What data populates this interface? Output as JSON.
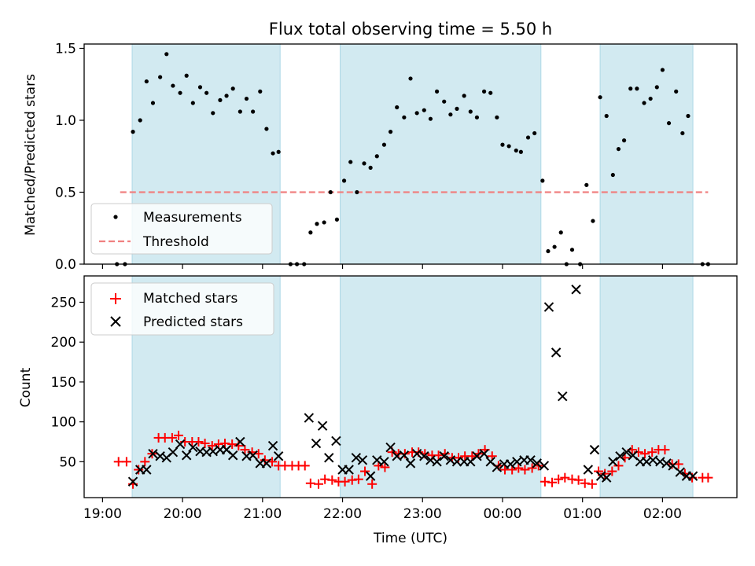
{
  "title": "Flux total observing time = 5.50 h",
  "x_axis": {
    "label": "Time (UTC)",
    "range_hours": [
      18.77,
      26.93
    ],
    "ticks": [
      {
        "h": 19,
        "label": "19:00"
      },
      {
        "h": 20,
        "label": "20:00"
      },
      {
        "h": 21,
        "label": "21:00"
      },
      {
        "h": 22,
        "label": "22:00"
      },
      {
        "h": 23,
        "label": "23:00"
      },
      {
        "h": 24,
        "label": "00:00"
      },
      {
        "h": 25,
        "label": "01:00"
      },
      {
        "h": 26,
        "label": "02:00"
      }
    ]
  },
  "colors": {
    "shade": "#add8e6",
    "measurement": "#000000",
    "threshold": "#f08080",
    "matched": "#ff0000",
    "predicted": "#000000"
  },
  "chart_data": [
    {
      "type": "scatter",
      "panel": "top",
      "ylabel": "Matched/Predicted stars",
      "ylim": [
        0,
        1.53
      ],
      "yticks": [
        {
          "v": 0.0,
          "label": "0.0"
        },
        {
          "v": 0.5,
          "label": "0.5"
        },
        {
          "v": 1.0,
          "label": "1.0"
        },
        {
          "v": 1.5,
          "label": "1.5"
        }
      ],
      "shaded_intervals": [
        [
          19.37,
          21.22
        ],
        [
          21.97,
          24.48
        ],
        [
          25.22,
          26.38
        ]
      ],
      "legend": {
        "position": "lower-left",
        "entries": [
          "Measurements",
          "Threshold"
        ]
      },
      "threshold": {
        "name": "Threshold",
        "value": 0.5,
        "x_range": [
          19.22,
          26.57
        ]
      },
      "measurements": {
        "name": "Measurements",
        "points": [
          [
            19.18,
            0.0
          ],
          [
            19.28,
            0.0
          ],
          [
            19.38,
            0.92
          ],
          [
            19.47,
            1.0
          ],
          [
            19.55,
            1.27
          ],
          [
            19.63,
            1.12
          ],
          [
            19.72,
            1.3
          ],
          [
            19.8,
            1.46
          ],
          [
            19.88,
            1.24
          ],
          [
            19.97,
            1.19
          ],
          [
            20.05,
            1.31
          ],
          [
            20.13,
            1.12
          ],
          [
            20.22,
            1.23
          ],
          [
            20.3,
            1.19
          ],
          [
            20.38,
            1.05
          ],
          [
            20.47,
            1.14
          ],
          [
            20.55,
            1.17
          ],
          [
            20.63,
            1.22
          ],
          [
            20.72,
            1.06
          ],
          [
            20.8,
            1.15
          ],
          [
            20.88,
            1.06
          ],
          [
            20.97,
            1.2
          ],
          [
            21.05,
            0.94
          ],
          [
            21.13,
            0.77
          ],
          [
            21.2,
            0.78
          ],
          [
            21.35,
            0.0
          ],
          [
            21.43,
            0.0
          ],
          [
            21.52,
            0.0
          ],
          [
            21.6,
            0.22
          ],
          [
            21.68,
            0.28
          ],
          [
            21.77,
            0.29
          ],
          [
            21.85,
            0.5
          ],
          [
            21.93,
            0.31
          ],
          [
            22.02,
            0.58
          ],
          [
            22.1,
            0.71
          ],
          [
            22.18,
            0.5
          ],
          [
            22.27,
            0.7
          ],
          [
            22.35,
            0.67
          ],
          [
            22.43,
            0.75
          ],
          [
            22.52,
            0.83
          ],
          [
            22.6,
            0.92
          ],
          [
            22.68,
            1.09
          ],
          [
            22.77,
            1.02
          ],
          [
            22.85,
            1.29
          ],
          [
            22.93,
            1.05
          ],
          [
            23.02,
            1.07
          ],
          [
            23.1,
            1.01
          ],
          [
            23.18,
            1.2
          ],
          [
            23.27,
            1.13
          ],
          [
            23.35,
            1.04
          ],
          [
            23.43,
            1.08
          ],
          [
            23.52,
            1.17
          ],
          [
            23.6,
            1.06
          ],
          [
            23.68,
            1.02
          ],
          [
            23.77,
            1.2
          ],
          [
            23.85,
            1.19
          ],
          [
            23.93,
            1.02
          ],
          [
            24.0,
            0.83
          ],
          [
            24.08,
            0.82
          ],
          [
            24.17,
            0.79
          ],
          [
            24.23,
            0.78
          ],
          [
            24.32,
            0.88
          ],
          [
            24.4,
            0.91
          ],
          [
            24.5,
            0.58
          ],
          [
            24.57,
            0.09
          ],
          [
            24.65,
            0.12
          ],
          [
            24.73,
            0.22
          ],
          [
            24.8,
            0.0
          ],
          [
            24.87,
            0.1
          ],
          [
            24.97,
            0.0
          ],
          [
            25.05,
            0.55
          ],
          [
            25.13,
            0.3
          ],
          [
            25.22,
            1.16
          ],
          [
            25.3,
            1.03
          ],
          [
            25.38,
            0.62
          ],
          [
            25.45,
            0.8
          ],
          [
            25.52,
            0.86
          ],
          [
            25.6,
            1.22
          ],
          [
            25.68,
            1.22
          ],
          [
            25.77,
            1.12
          ],
          [
            25.85,
            1.15
          ],
          [
            25.93,
            1.23
          ],
          [
            26.0,
            1.35
          ],
          [
            26.08,
            0.98
          ],
          [
            26.17,
            1.2
          ],
          [
            26.25,
            0.91
          ],
          [
            26.32,
            1.03
          ],
          [
            26.5,
            0.0
          ],
          [
            26.57,
            0.0
          ]
        ]
      }
    },
    {
      "type": "scatter",
      "panel": "bottom",
      "ylabel": "Count",
      "ylim": [
        5,
        283
      ],
      "yticks": [
        {
          "v": 50,
          "label": "50"
        },
        {
          "v": 100,
          "label": "100"
        },
        {
          "v": 150,
          "label": "150"
        },
        {
          "v": 200,
          "label": "200"
        },
        {
          "v": 250,
          "label": "250"
        }
      ],
      "shaded_intervals": [
        [
          19.37,
          21.22
        ],
        [
          21.97,
          24.48
        ],
        [
          25.22,
          26.38
        ]
      ],
      "legend": {
        "position": "upper-left",
        "entries": [
          "Matched stars",
          "Predicted stars"
        ]
      },
      "series": [
        {
          "name": "Matched stars",
          "marker": "plus",
          "points": [
            [
              19.2,
              50
            ],
            [
              19.3,
              50
            ],
            [
              19.38,
              22
            ],
            [
              19.45,
              40
            ],
            [
              19.53,
              50
            ],
            [
              19.62,
              60
            ],
            [
              19.7,
              80
            ],
            [
              19.78,
              80
            ],
            [
              19.87,
              80
            ],
            [
              19.95,
              83
            ],
            [
              20.03,
              75
            ],
            [
              20.12,
              75
            ],
            [
              20.2,
              75
            ],
            [
              20.28,
              73
            ],
            [
              20.37,
              70
            ],
            [
              20.45,
              72
            ],
            [
              20.53,
              73
            ],
            [
              20.62,
              72
            ],
            [
              20.7,
              70
            ],
            [
              20.78,
              65
            ],
            [
              20.87,
              62
            ],
            [
              20.95,
              60
            ],
            [
              21.03,
              52
            ],
            [
              21.12,
              50
            ],
            [
              21.2,
              45
            ],
            [
              21.28,
              45
            ],
            [
              21.37,
              45
            ],
            [
              21.45,
              45
            ],
            [
              21.53,
              45
            ],
            [
              21.6,
              23
            ],
            [
              21.7,
              22
            ],
            [
              21.78,
              28
            ],
            [
              21.87,
              27
            ],
            [
              21.95,
              25
            ],
            [
              22.03,
              25
            ],
            [
              22.12,
              27
            ],
            [
              22.2,
              28
            ],
            [
              22.28,
              38
            ],
            [
              22.37,
              22
            ],
            [
              22.45,
              45
            ],
            [
              22.53,
              43
            ],
            [
              22.62,
              62
            ],
            [
              22.7,
              60
            ],
            [
              22.78,
              60
            ],
            [
              22.87,
              62
            ],
            [
              22.95,
              62
            ],
            [
              23.03,
              60
            ],
            [
              23.12,
              58
            ],
            [
              23.2,
              58
            ],
            [
              23.28,
              60
            ],
            [
              23.37,
              55
            ],
            [
              23.45,
              55
            ],
            [
              23.53,
              57
            ],
            [
              23.62,
              57
            ],
            [
              23.7,
              60
            ],
            [
              23.78,
              65
            ],
            [
              23.87,
              57
            ],
            [
              23.95,
              45
            ],
            [
              24.03,
              40
            ],
            [
              24.12,
              40
            ],
            [
              24.2,
              42
            ],
            [
              24.28,
              40
            ],
            [
              24.37,
              42
            ],
            [
              24.45,
              45
            ],
            [
              24.53,
              25
            ],
            [
              24.62,
              24
            ],
            [
              24.7,
              28
            ],
            [
              24.78,
              30
            ],
            [
              24.87,
              28
            ],
            [
              24.95,
              27
            ],
            [
              25.03,
              23
            ],
            [
              25.12,
              22
            ],
            [
              25.2,
              38
            ],
            [
              25.28,
              35
            ],
            [
              25.37,
              38
            ],
            [
              25.45,
              45
            ],
            [
              25.53,
              55
            ],
            [
              25.62,
              65
            ],
            [
              25.7,
              62
            ],
            [
              25.78,
              60
            ],
            [
              25.87,
              62
            ],
            [
              25.95,
              65
            ],
            [
              26.03,
              65
            ],
            [
              26.12,
              47
            ],
            [
              26.2,
              47
            ],
            [
              26.28,
              35
            ],
            [
              26.37,
              30
            ],
            [
              26.5,
              30
            ],
            [
              26.57,
              30
            ]
          ]
        },
        {
          "name": "Predicted stars",
          "marker": "x",
          "points": [
            [
              19.38,
              25
            ],
            [
              19.47,
              40
            ],
            [
              19.55,
              40
            ],
            [
              19.63,
              60
            ],
            [
              19.72,
              57
            ],
            [
              19.8,
              55
            ],
            [
              19.88,
              62
            ],
            [
              19.97,
              72
            ],
            [
              20.05,
              58
            ],
            [
              20.13,
              68
            ],
            [
              20.22,
              63
            ],
            [
              20.3,
              62
            ],
            [
              20.38,
              63
            ],
            [
              20.47,
              65
            ],
            [
              20.55,
              65
            ],
            [
              20.63,
              58
            ],
            [
              20.72,
              75
            ],
            [
              20.8,
              57
            ],
            [
              20.88,
              58
            ],
            [
              20.97,
              48
            ],
            [
              21.05,
              48
            ],
            [
              21.13,
              70
            ],
            [
              21.2,
              57
            ],
            [
              21.58,
              105
            ],
            [
              21.67,
              73
            ],
            [
              21.75,
              95
            ],
            [
              21.83,
              55
            ],
            [
              21.92,
              76
            ],
            [
              22.0,
              40
            ],
            [
              22.08,
              40
            ],
            [
              22.17,
              55
            ],
            [
              22.25,
              52
            ],
            [
              22.35,
              32
            ],
            [
              22.43,
              52
            ],
            [
              22.52,
              50
            ],
            [
              22.6,
              68
            ],
            [
              22.68,
              57
            ],
            [
              22.77,
              58
            ],
            [
              22.85,
              48
            ],
            [
              22.93,
              60
            ],
            [
              23.02,
              57
            ],
            [
              23.1,
              52
            ],
            [
              23.18,
              50
            ],
            [
              23.27,
              57
            ],
            [
              23.35,
              52
            ],
            [
              23.43,
              50
            ],
            [
              23.52,
              50
            ],
            [
              23.6,
              50
            ],
            [
              23.68,
              57
            ],
            [
              23.77,
              60
            ],
            [
              23.85,
              50
            ],
            [
              23.93,
              43
            ],
            [
              24.02,
              47
            ],
            [
              24.1,
              47
            ],
            [
              24.18,
              50
            ],
            [
              24.27,
              52
            ],
            [
              24.35,
              52
            ],
            [
              24.43,
              48
            ],
            [
              24.52,
              45
            ],
            [
              24.58,
              244
            ],
            [
              24.67,
              187
            ],
            [
              24.75,
              132
            ],
            [
              24.92,
              266
            ],
            [
              25.07,
              40
            ],
            [
              25.15,
              65
            ],
            [
              25.23,
              32
            ],
            [
              25.3,
              30
            ],
            [
              25.38,
              50
            ],
            [
              25.47,
              57
            ],
            [
              25.55,
              62
            ],
            [
              25.63,
              58
            ],
            [
              25.72,
              50
            ],
            [
              25.8,
              50
            ],
            [
              25.88,
              52
            ],
            [
              25.97,
              50
            ],
            [
              26.05,
              48
            ],
            [
              26.13,
              45
            ],
            [
              26.22,
              37
            ],
            [
              26.3,
              32
            ],
            [
              26.38,
              32
            ]
          ]
        }
      ]
    }
  ]
}
